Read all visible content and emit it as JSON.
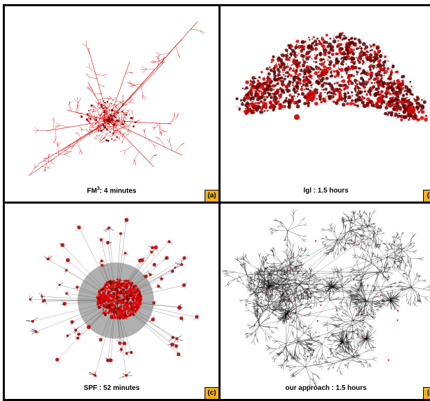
{
  "panels": [
    {
      "id": "a",
      "method": "FM",
      "superscript": "3",
      "time": ": 4 minutes",
      "label": "(a)"
    },
    {
      "id": "b",
      "method": "lgl : 1.5 hours",
      "label": "(b"
    },
    {
      "id": "c",
      "method": "SPF : 52 minutes",
      "label": "(c)"
    },
    {
      "id": "d",
      "method": "our approach : 1.5 hours",
      "label": "(d"
    }
  ],
  "colors": {
    "node": "#d40000",
    "edge": "#8a0000",
    "gray": "#6f6f6f",
    "badge": "#f2b21b"
  }
}
